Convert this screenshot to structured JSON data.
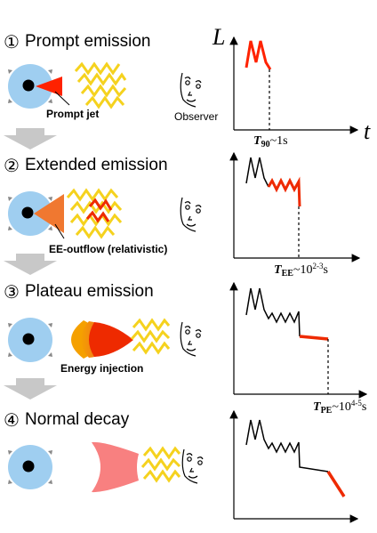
{
  "stages": [
    {
      "number": "①",
      "title": "Prompt emission",
      "label": "Prompt jet",
      "time_label": {
        "var": "T",
        "sub": "90",
        "approx": "~1s",
        "sup": ""
      }
    },
    {
      "number": "②",
      "title": "Extended emission",
      "label": "EE-outflow (relativistic)",
      "time_label": {
        "var": "T",
        "sub": "EE",
        "approx": "~10",
        "sup": "2-3",
        "unit": "s"
      }
    },
    {
      "number": "③",
      "title": "Plateau emission",
      "label": "Energy injection",
      "time_label": {
        "var": "T",
        "sub": "PE",
        "approx": "~10",
        "sup": "4-5",
        "unit": "s"
      }
    },
    {
      "number": "④",
      "title": "Normal decay",
      "label": "",
      "time_label": null
    }
  ],
  "observer_label": "Observer",
  "axis": {
    "y": "L",
    "x": "t"
  },
  "colors": {
    "central_engine": "#9fcef0",
    "red": "#ff2200",
    "orange": "#f07830",
    "yellow": "#f5d21e",
    "plateau_orange": "#f28a00",
    "pink": "#f88080",
    "arrow_gray": "#c8c8c8"
  }
}
